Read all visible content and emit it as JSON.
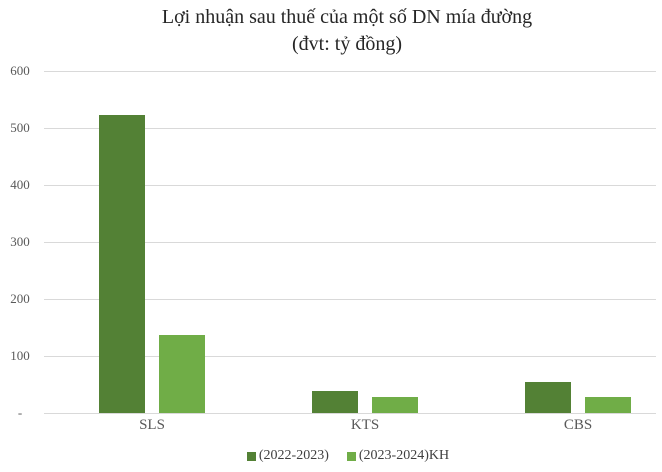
{
  "chart_data": {
    "type": "bar",
    "title": "Lợi nhuận sau thuế của một số DN mía đường",
    "subtitle": "(đvt: tỷ đồng)",
    "categories": [
      "SLS",
      "KTS",
      "CBS"
    ],
    "series": [
      {
        "name": "(2022-2023)",
        "color": "#538135",
        "values": [
          523,
          39,
          55
        ]
      },
      {
        "name": "(2023-2024)KH",
        "color": "#70AD47",
        "values": [
          137,
          28,
          28
        ]
      }
    ],
    "ylim": [
      0,
      600
    ],
    "ytick_values": [
      600,
      500,
      400,
      300,
      200,
      100,
      0
    ],
    "ytick_labels": [
      "600",
      "500",
      "400",
      "300",
      "200",
      "100",
      "-"
    ],
    "grid": true,
    "legend_position": "bottom",
    "colors": {
      "grid": "#D9D9D9",
      "axis_text": "#595959",
      "title_text": "#262626",
      "background": "#FFFFFF"
    }
  }
}
